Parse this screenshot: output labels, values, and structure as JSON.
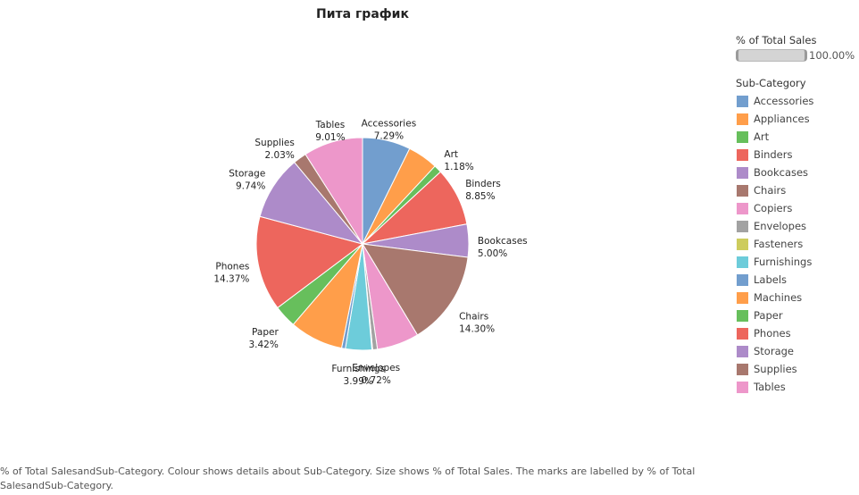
{
  "chart_data": {
    "type": "pie",
    "title": "Пита график",
    "categories": [
      "Accessories",
      "Appliances",
      "Art",
      "Binders",
      "Bookcases",
      "Chairs",
      "Copiers",
      "Envelopes",
      "Fasteners",
      "Furnishings",
      "Labels",
      "Machines",
      "Paper",
      "Phones",
      "Storage",
      "Supplies",
      "Tables"
    ],
    "values": [
      7.29,
      4.62,
      1.18,
      8.85,
      5.0,
      14.3,
      6.38,
      0.72,
      0.11,
      3.99,
      0.57,
      8.13,
      3.42,
      14.37,
      9.74,
      2.03,
      9.01
    ],
    "colors": [
      "#729ece",
      "#ff9e4a",
      "#67bf5c",
      "#ed665d",
      "#ad8bc9",
      "#a8786e",
      "#ed97ca",
      "#a2a2a2",
      "#cdcc5d",
      "#6dccda",
      "#729ece",
      "#ff9e4a",
      "#67bf5c",
      "#ed665d",
      "#ad8bc9",
      "#a8786e",
      "#ed97ca"
    ],
    "data_labels": [
      {
        "index": 0,
        "name": "Accessories",
        "value": "7.29%"
      },
      {
        "index": 2,
        "name": "Art",
        "value": "1.18%"
      },
      {
        "index": 3,
        "name": "Binders",
        "value": "8.85%"
      },
      {
        "index": 4,
        "name": "Bookcases",
        "value": "5.00%"
      },
      {
        "index": 5,
        "name": "Chairs",
        "value": "14.30%"
      },
      {
        "index": 7,
        "name": "Envelopes",
        "value": "0.72%"
      },
      {
        "index": 9,
        "name": "Furnishings",
        "value": "3.99%"
      },
      {
        "index": 12,
        "name": "Paper",
        "value": "3.42%"
      },
      {
        "index": 13,
        "name": "Phones",
        "value": "14.37%"
      },
      {
        "index": 14,
        "name": "Storage",
        "value": "9.74%"
      },
      {
        "index": 15,
        "name": "Supplies",
        "value": "2.03%"
      },
      {
        "index": 16,
        "name": "Tables",
        "value": "9.01%"
      }
    ]
  },
  "legend": {
    "size_title": "% of Total Sales",
    "size_value": "100.00%",
    "color_title": "Sub-Category",
    "items": [
      "Accessories",
      "Appliances",
      "Art",
      "Binders",
      "Bookcases",
      "Chairs",
      "Copiers",
      "Envelopes",
      "Fasteners",
      "Furnishings",
      "Labels",
      "Machines",
      "Paper",
      "Phones",
      "Storage",
      "Supplies",
      "Tables"
    ]
  },
  "caption": "% of Total SalesandSub-Category.  Colour shows details about Sub-Category.  Size shows % of Total Sales.  The marks are labelled by % of Total SalesandSub-Category."
}
